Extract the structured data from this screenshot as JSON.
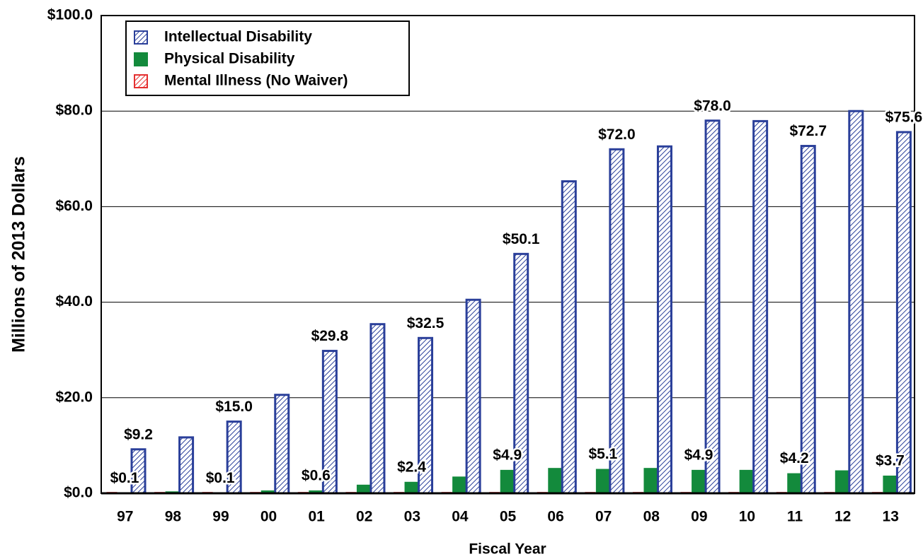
{
  "chart_data": {
    "type": "bar",
    "x_label": "Fiscal Year",
    "y_label": "Millions of 2013 Dollars",
    "categories": [
      "97",
      "98",
      "99",
      "00",
      "01",
      "02",
      "03",
      "04",
      "05",
      "06",
      "07",
      "08",
      "09",
      "10",
      "11",
      "12",
      "13"
    ],
    "series": [
      {
        "name": "Intellectual Disability",
        "color": "#2a3f9a",
        "values": [
          9.2,
          11.7,
          15.0,
          20.6,
          29.8,
          35.4,
          32.5,
          40.5,
          50.1,
          65.3,
          72.0,
          72.6,
          78.0,
          77.9,
          72.7,
          80.0,
          75.6
        ],
        "value_labels": [
          "$9.2",
          null,
          "$15.0",
          null,
          "$29.8",
          null,
          "$32.5",
          null,
          "$50.1",
          null,
          "$72.0",
          null,
          "$78.0",
          null,
          "$72.7",
          null,
          "$75.6"
        ]
      },
      {
        "name": "Physical Disability",
        "color": "#138a3c",
        "values": [
          0.1,
          0.4,
          0.1,
          0.6,
          0.6,
          1.8,
          2.4,
          3.5,
          4.9,
          5.3,
          5.1,
          5.3,
          4.9,
          4.9,
          4.2,
          4.8,
          3.7
        ],
        "value_labels": [
          "$0.1",
          null,
          "$0.1",
          null,
          "$0.6",
          null,
          "$2.4",
          null,
          "$4.9",
          null,
          "$5.1",
          null,
          "$4.9",
          null,
          "$4.2",
          null,
          "$3.7"
        ]
      },
      {
        "name": "Mental Illness (No Waiver)",
        "color": "#e53030",
        "values": [
          0.2,
          0.2,
          0.2,
          0.2,
          0.2,
          0.2,
          0.2,
          0.2,
          0.2,
          0.2,
          0.2,
          0.2,
          0.2,
          0.2,
          0.2,
          0.2,
          0.2
        ]
      }
    ],
    "ylim": [
      0,
      100
    ],
    "yticks": [
      {
        "value": 0,
        "label": "$0.0"
      },
      {
        "value": 20,
        "label": "$20.0"
      },
      {
        "value": 40,
        "label": "$40.0"
      },
      {
        "value": 60,
        "label": "$60.0"
      },
      {
        "value": 80,
        "label": "$80.0"
      },
      {
        "value": 100,
        "label": "$100.0"
      }
    ],
    "grid": true,
    "legend": "upper left"
  }
}
